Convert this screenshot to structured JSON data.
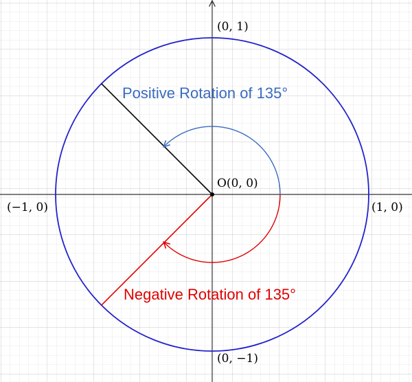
{
  "origin_label": "O(0, 0)",
  "point_labels": {
    "top": "(0, 1)",
    "bottom": "(0, −1)",
    "left": "(−1, 0)",
    "right": "(1, 0)"
  },
  "rotations": {
    "positive": {
      "label": "Positive Rotation of 135°",
      "angle_deg": 135
    },
    "negative": {
      "label": "Negative Rotation of 135°",
      "angle_deg": -135
    }
  },
  "colors": {
    "circle": "#2222cc",
    "positive": "#3a6bbf",
    "negative": "#e00000",
    "terminal_positive": "#000000"
  }
}
